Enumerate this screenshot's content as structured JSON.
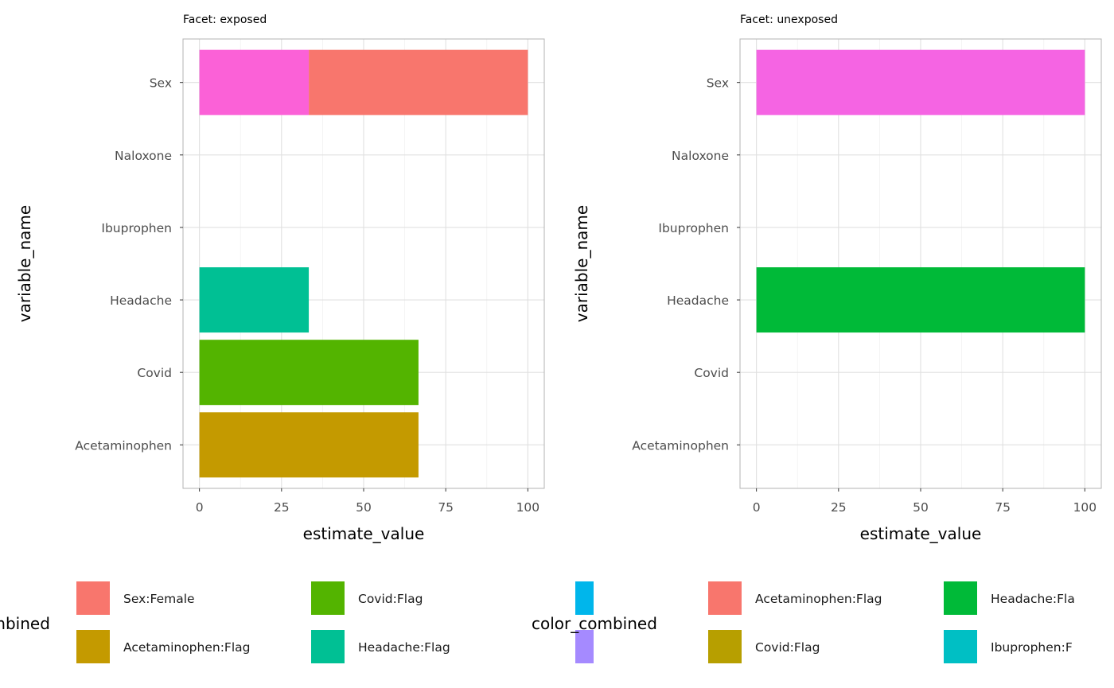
{
  "chart_data": [
    {
      "type": "bar",
      "orientation": "horizontal",
      "stacked": true,
      "facet_title": "Facet: exposed",
      "xlabel": "estimate_value",
      "ylabel": "variable_name",
      "xlim": [
        0,
        100
      ],
      "x_ticks": [
        0,
        25,
        50,
        75,
        100
      ],
      "categories": [
        "Sex",
        "Naloxone",
        "Ibuprophen",
        "Headache",
        "Covid",
        "Acetaminophen"
      ],
      "grid": true,
      "bars": [
        {
          "category": "Sex",
          "start": 0,
          "end": 33.3,
          "color": "#FB61D7"
        },
        {
          "category": "Sex",
          "start": 33.3,
          "end": 100,
          "color": "#F8766D"
        },
        {
          "category": "Headache",
          "start": 0,
          "end": 33.3,
          "color": "#00C094"
        },
        {
          "category": "Covid",
          "start": 0,
          "end": 66.7,
          "color": "#53B400"
        },
        {
          "category": "Acetaminophen",
          "start": 0,
          "end": 66.7,
          "color": "#C49A00"
        }
      ],
      "legend": {
        "title": "color_combined",
        "placement": "bottom",
        "entries": [
          {
            "label": "Sex:Female",
            "color": "#F8766D"
          },
          {
            "label": "Acetaminophen:Flag",
            "color": "#C49A00"
          },
          {
            "label": "Covid:Flag",
            "color": "#53B400"
          },
          {
            "label": "Headache:Flag",
            "color": "#00C094"
          },
          {
            "label": "",
            "color": "#00B6EB"
          },
          {
            "label": "",
            "color": "#A58AFF"
          }
        ]
      }
    },
    {
      "type": "bar",
      "orientation": "horizontal",
      "stacked": true,
      "facet_title": "Facet: unexposed",
      "xlabel": "estimate_value",
      "ylabel": "variable_name",
      "xlim": [
        0,
        100
      ],
      "x_ticks": [
        0,
        25,
        50,
        75,
        100
      ],
      "categories": [
        "Sex",
        "Naloxone",
        "Ibuprophen",
        "Headache",
        "Covid",
        "Acetaminophen"
      ],
      "grid": true,
      "bars": [
        {
          "category": "Sex",
          "start": 0,
          "end": 100,
          "color": "#F564E3"
        },
        {
          "category": "Headache",
          "start": 0,
          "end": 100,
          "color": "#00BA38"
        }
      ],
      "legend": {
        "title": "color_combined",
        "placement": "bottom",
        "entries": [
          {
            "label": "Acetaminophen:Flag",
            "color": "#F8766D"
          },
          {
            "label": "Covid:Flag",
            "color": "#B79F00"
          },
          {
            "label": "Headache:Fla",
            "color": "#00BA38"
          },
          {
            "label": "Ibuprophen:F",
            "color": "#00BFC4"
          }
        ]
      }
    }
  ]
}
